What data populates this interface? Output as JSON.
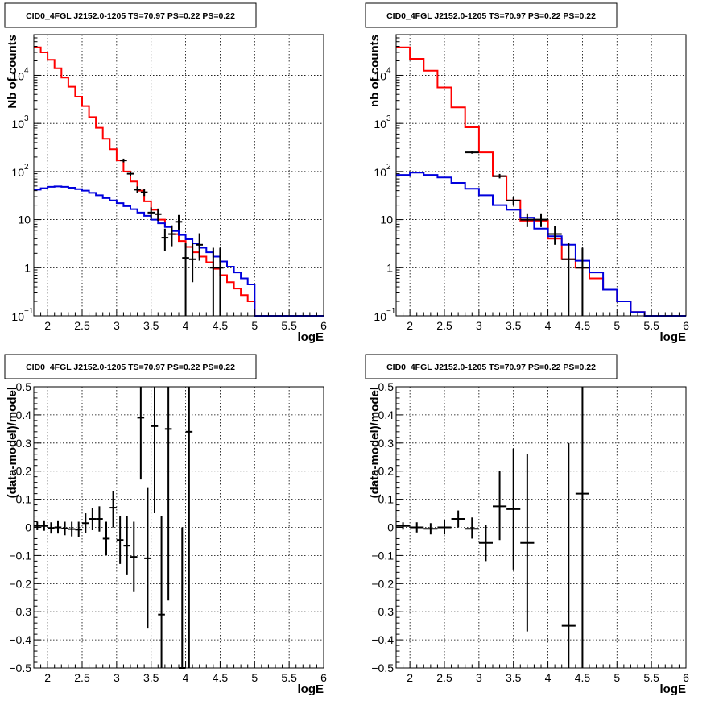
{
  "chart_data": [
    {
      "type": "histogram",
      "title": "CID0_4FGL J2152.0-1205 TS=70.97 PS=0.22 PS=0.22",
      "xlabel": "logE",
      "ylabel": "Nb of counts",
      "xlim": [
        1.8,
        6.0
      ],
      "ylim": [
        0.1,
        70000
      ],
      "yscale": "log",
      "grid": true,
      "xticks": [
        2,
        2.5,
        3,
        3.5,
        4,
        4.5,
        5,
        5.5,
        6
      ],
      "xtick_labels": [
        "2",
        "2.5",
        "3",
        "3.5",
        "4",
        "4.5",
        "5",
        "5.5",
        "6"
      ],
      "yticks": [
        0.1,
        1,
        10,
        100,
        1000,
        10000
      ],
      "ytick_labels": [
        [
          "10",
          "−1"
        ],
        [
          "1",
          ""
        ],
        [
          "10",
          ""
        ],
        [
          "10",
          "2"
        ],
        [
          "10",
          "3"
        ],
        [
          "10",
          "4"
        ]
      ],
      "bin_edges": [
        1.8,
        1.9,
        2.0,
        2.1,
        2.2,
        2.3,
        2.4,
        2.5,
        2.6,
        2.7,
        2.8,
        2.9,
        3.0,
        3.1,
        3.2,
        3.3,
        3.4,
        3.5,
        3.6,
        3.7,
        3.8,
        3.9,
        4.0,
        4.1,
        4.2,
        4.3,
        4.4,
        4.5,
        4.6,
        4.7,
        4.8,
        4.9,
        5.0,
        5.1,
        5.2,
        5.3,
        5.4,
        5.5,
        5.6,
        5.7,
        5.8,
        5.9,
        6.0
      ],
      "series": [
        {
          "color": "#ff0000",
          "values": [
            38000,
            30000,
            21000,
            14000,
            9000,
            5800,
            3600,
            2300,
            1350,
            810,
            480,
            290,
            170,
            100,
            62,
            40,
            24,
            16,
            10,
            7.2,
            5.0,
            3.6,
            2.7,
            2.1,
            1.7,
            1.3,
            0.95,
            0.7,
            0.5,
            0.37,
            0.27,
            0.2,
            0.1,
            0.1,
            0.1,
            0.1,
            0.1,
            0.1,
            0.1,
            0.1,
            0.1,
            0.1
          ]
        },
        {
          "color": "#0000dd",
          "values": [
            42,
            45,
            48,
            49,
            48,
            46,
            43,
            40,
            36,
            32,
            28,
            25,
            22,
            19,
            16.5,
            14,
            12,
            10,
            8.4,
            7.0,
            5.8,
            4.8,
            3.9,
            3.2,
            2.6,
            2.1,
            1.7,
            1.35,
            1.05,
            0.8,
            0.6,
            0.45,
            0.1,
            0.1,
            0.1,
            0.1,
            0.1,
            0.1,
            0.1,
            0.1,
            0.1,
            0.1
          ]
        }
      ],
      "data_points": [
        {
          "x": 3.1,
          "y": 170,
          "ylo": 155,
          "yhi": 185,
          "xerr": 0.05
        },
        {
          "x": 3.2,
          "y": 90,
          "ylo": 80,
          "yhi": 100,
          "xerr": 0.05
        },
        {
          "x": 3.3,
          "y": 42,
          "ylo": 36,
          "yhi": 49,
          "xerr": 0.05
        },
        {
          "x": 3.4,
          "y": 37,
          "ylo": 31,
          "yhi": 44,
          "xerr": 0.05
        },
        {
          "x": 3.5,
          "y": 14,
          "ylo": 10.5,
          "yhi": 18,
          "xerr": 0.05
        },
        {
          "x": 3.6,
          "y": 13,
          "ylo": 9.5,
          "yhi": 17,
          "xerr": 0.05
        },
        {
          "x": 3.7,
          "y": 4.2,
          "ylo": 2.2,
          "yhi": 6.5,
          "xerr": 0.05
        },
        {
          "x": 3.8,
          "y": 5.0,
          "ylo": 2.8,
          "yhi": 7.6,
          "xerr": 0.05
        },
        {
          "x": 3.9,
          "y": 9.0,
          "ylo": 6.2,
          "yhi": 12.5,
          "xerr": 0.05
        },
        {
          "x": 4.0,
          "y": 1.6,
          "ylo": 0.1,
          "yhi": 3.3,
          "xerr": 0.05
        },
        {
          "x": 4.1,
          "y": 1.5,
          "ylo": 0.5,
          "yhi": 3.2,
          "xerr": 0.05
        },
        {
          "x": 4.2,
          "y": 3.0,
          "ylo": 1.4,
          "yhi": 5.2,
          "xerr": 0.05
        },
        {
          "x": 4.4,
          "y": 1.0,
          "ylo": 0.1,
          "yhi": 2.6,
          "xerr": 0.05
        },
        {
          "x": 4.5,
          "y": 1.0,
          "ylo": 0.1,
          "yhi": 2.6,
          "xerr": 0.05
        }
      ]
    },
    {
      "type": "histogram",
      "title": "CID0_4FGL J2152.0-1205 TS=70.97 PS=0.22 PS=0.22",
      "xlabel": "logE",
      "ylabel": "nb of counts",
      "xlim": [
        1.8,
        6.0
      ],
      "ylim": [
        0.1,
        70000
      ],
      "yscale": "log",
      "grid": true,
      "xticks": [
        2,
        2.5,
        3,
        3.5,
        4,
        4.5,
        5,
        5.5,
        6
      ],
      "xtick_labels": [
        "2",
        "2.5",
        "3",
        "3.5",
        "4",
        "4.5",
        "5",
        "5.5",
        "6"
      ],
      "yticks": [
        0.1,
        1,
        10,
        100,
        1000,
        10000
      ],
      "ytick_labels": [
        [
          "10",
          "−1"
        ],
        [
          "1",
          ""
        ],
        [
          "10",
          ""
        ],
        [
          "10",
          "2"
        ],
        [
          "10",
          "3"
        ],
        [
          "10",
          "4"
        ]
      ],
      "bin_edges": [
        1.8,
        2.0,
        2.2,
        2.4,
        2.6,
        2.8,
        3.0,
        3.2,
        3.4,
        3.6,
        3.8,
        4.0,
        4.2,
        4.4,
        4.6,
        4.8,
        5.0,
        5.2,
        5.4,
        5.6,
        5.8,
        6.0
      ],
      "series": [
        {
          "color": "#ff0000",
          "values": [
            38000,
            22000,
            12500,
            5600,
            2150,
            830,
            250,
            80,
            25,
            9.5,
            9.5,
            4.0,
            1.5,
            1.0,
            0.6,
            0.35,
            0.2,
            0.12,
            0.1,
            0.1,
            0.1
          ]
        },
        {
          "color": "#0000dd",
          "values": [
            85,
            95,
            85,
            75,
            58,
            44,
            32,
            20,
            16,
            11,
            6.5,
            4.5,
            3.0,
            1.4,
            0.8,
            0.35,
            0.2,
            0.12,
            0.1,
            0.1,
            0.1
          ]
        }
      ],
      "data_points": [
        {
          "x": 2.9,
          "y": 250,
          "ylo": 235,
          "yhi": 265,
          "xerr": 0.1
        },
        {
          "x": 3.3,
          "y": 80,
          "ylo": 72,
          "yhi": 89,
          "xerr": 0.1
        },
        {
          "x": 3.5,
          "y": 25,
          "ylo": 20,
          "yhi": 30,
          "xerr": 0.1
        },
        {
          "x": 3.7,
          "y": 10,
          "ylo": 7,
          "yhi": 13.5,
          "xerr": 0.1
        },
        {
          "x": 3.9,
          "y": 10,
          "ylo": 7,
          "yhi": 13.5,
          "xerr": 0.1
        },
        {
          "x": 4.1,
          "y": 5.0,
          "ylo": 3.0,
          "yhi": 7.5,
          "xerr": 0.1
        },
        {
          "x": 4.3,
          "y": 1.5,
          "ylo": 0.1,
          "yhi": 3.3,
          "xerr": 0.1
        },
        {
          "x": 4.5,
          "y": 1.0,
          "ylo": 0.1,
          "yhi": 2.6,
          "xerr": 0.1
        }
      ]
    },
    {
      "type": "scatter",
      "title": "CID0_4FGL J2152.0-1205 TS=70.97 PS=0.22 PS=0.22",
      "xlabel": "logE",
      "ylabel": "(data-model)/model",
      "xlim": [
        1.8,
        6.0
      ],
      "ylim": [
        -0.5,
        0.5
      ],
      "yscale": "linear",
      "grid": true,
      "xticks": [
        2,
        2.5,
        3,
        3.5,
        4,
        4.5,
        5,
        5.5,
        6
      ],
      "xtick_labels": [
        "2",
        "2.5",
        "3",
        "3.5",
        "4",
        "4.5",
        "5",
        "5.5",
        "6"
      ],
      "yticks": [
        -0.5,
        -0.4,
        -0.3,
        -0.2,
        -0.1,
        0,
        0.1,
        0.2,
        0.3,
        0.4,
        0.5
      ],
      "ytick_labels": [
        "−0.5",
        "−0.4",
        "−0.3",
        "−0.2",
        "−0.1",
        "0",
        "0.1",
        "0.2",
        "0.3",
        "0.4",
        "0.5"
      ],
      "data_points": [
        {
          "x": 1.85,
          "y": 0.005,
          "ylo": -0.01,
          "yhi": 0.02,
          "xerr": 0.05
        },
        {
          "x": 1.95,
          "y": 0.005,
          "ylo": -0.012,
          "yhi": 0.022,
          "xerr": 0.05
        },
        {
          "x": 2.05,
          "y": -0.002,
          "ylo": -0.022,
          "yhi": 0.018,
          "xerr": 0.05
        },
        {
          "x": 2.15,
          "y": 0.0,
          "ylo": -0.022,
          "yhi": 0.022,
          "xerr": 0.05
        },
        {
          "x": 2.25,
          "y": -0.004,
          "ylo": -0.028,
          "yhi": 0.02,
          "xerr": 0.05
        },
        {
          "x": 2.35,
          "y": -0.006,
          "ylo": -0.032,
          "yhi": 0.02,
          "xerr": 0.05
        },
        {
          "x": 2.45,
          "y": -0.008,
          "ylo": -0.035,
          "yhi": 0.02,
          "xerr": 0.05
        },
        {
          "x": 2.55,
          "y": 0.015,
          "ylo": -0.02,
          "yhi": 0.05,
          "xerr": 0.05
        },
        {
          "x": 2.65,
          "y": 0.03,
          "ylo": -0.01,
          "yhi": 0.07,
          "xerr": 0.05
        },
        {
          "x": 2.75,
          "y": 0.03,
          "ylo": -0.015,
          "yhi": 0.075,
          "xerr": 0.05
        },
        {
          "x": 2.85,
          "y": -0.04,
          "ylo": -0.1,
          "yhi": 0.02,
          "xerr": 0.05
        },
        {
          "x": 2.95,
          "y": 0.07,
          "ylo": 0.0,
          "yhi": 0.13,
          "xerr": 0.05
        },
        {
          "x": 3.05,
          "y": -0.045,
          "ylo": -0.13,
          "yhi": 0.04,
          "xerr": 0.05
        },
        {
          "x": 3.15,
          "y": -0.065,
          "ylo": -0.17,
          "yhi": 0.04,
          "xerr": 0.05
        },
        {
          "x": 3.25,
          "y": -0.105,
          "ylo": -0.23,
          "yhi": 0.02,
          "xerr": 0.05
        },
        {
          "x": 3.35,
          "y": 0.39,
          "ylo": 0.17,
          "yhi": 0.5,
          "xerr": 0.05
        },
        {
          "x": 3.45,
          "y": -0.11,
          "ylo": -0.36,
          "yhi": 0.14,
          "xerr": 0.05
        },
        {
          "x": 3.55,
          "y": 0.36,
          "ylo": 0.05,
          "yhi": 0.5,
          "xerr": 0.05
        },
        {
          "x": 3.65,
          "y": -0.31,
          "ylo": -0.5,
          "yhi": 0.04,
          "xerr": 0.05
        },
        {
          "x": 3.75,
          "y": 0.35,
          "ylo": -0.26,
          "yhi": 0.5,
          "xerr": 0.05
        },
        {
          "x": 3.95,
          "y": -0.5,
          "ylo": -0.5,
          "yhi": 0.0,
          "xerr": 0.05
        },
        {
          "x": 4.05,
          "y": 0.34,
          "ylo": -0.5,
          "yhi": 0.5,
          "xerr": 0.05
        }
      ]
    },
    {
      "type": "scatter",
      "title": "CID0_4FGL J2152.0-1205 TS=70.97 PS=0.22 PS=0.22",
      "xlabel": "logE",
      "ylabel": "(data-model)/model",
      "xlim": [
        1.8,
        6.0
      ],
      "ylim": [
        -0.5,
        0.5
      ],
      "yscale": "linear",
      "grid": true,
      "xticks": [
        2,
        2.5,
        3,
        3.5,
        4,
        4.5,
        5,
        5.5,
        6
      ],
      "xtick_labels": [
        "2",
        "2.5",
        "3",
        "3.5",
        "4",
        "4.5",
        "5",
        "5.5",
        "6"
      ],
      "yticks": [
        -0.5,
        -0.4,
        -0.3,
        -0.2,
        -0.1,
        0,
        0.1,
        0.2,
        0.3,
        0.4,
        0.5
      ],
      "ytick_labels": [
        "−0.5",
        "−0.4",
        "−0.3",
        "−0.2",
        "−0.1",
        "0",
        "0.1",
        "0.2",
        "0.3",
        "0.4",
        "0.5"
      ],
      "data_points": [
        {
          "x": 1.9,
          "y": 0.005,
          "ylo": -0.008,
          "yhi": 0.018,
          "xerr": 0.1
        },
        {
          "x": 2.1,
          "y": 0.0,
          "ylo": -0.018,
          "yhi": 0.018,
          "xerr": 0.1
        },
        {
          "x": 2.3,
          "y": -0.005,
          "ylo": -0.025,
          "yhi": 0.015,
          "xerr": 0.1
        },
        {
          "x": 2.5,
          "y": 0.0,
          "ylo": -0.025,
          "yhi": 0.025,
          "xerr": 0.1
        },
        {
          "x": 2.7,
          "y": 0.03,
          "ylo": 0.0,
          "yhi": 0.06,
          "xerr": 0.1
        },
        {
          "x": 2.9,
          "y": -0.005,
          "ylo": -0.04,
          "yhi": 0.035,
          "xerr": 0.1
        },
        {
          "x": 3.1,
          "y": -0.055,
          "ylo": -0.12,
          "yhi": 0.01,
          "xerr": 0.1
        },
        {
          "x": 3.3,
          "y": 0.075,
          "ylo": -0.045,
          "yhi": 0.2,
          "xerr": 0.1
        },
        {
          "x": 3.5,
          "y": 0.065,
          "ylo": -0.15,
          "yhi": 0.28,
          "xerr": 0.1
        },
        {
          "x": 3.7,
          "y": -0.055,
          "ylo": -0.37,
          "yhi": 0.26,
          "xerr": 0.1
        },
        {
          "x": 4.3,
          "y": -0.35,
          "ylo": -0.5,
          "yhi": 0.3,
          "xerr": 0.1
        },
        {
          "x": 4.5,
          "y": 0.12,
          "ylo": -0.5,
          "yhi": 0.5,
          "xerr": 0.1
        }
      ]
    }
  ]
}
